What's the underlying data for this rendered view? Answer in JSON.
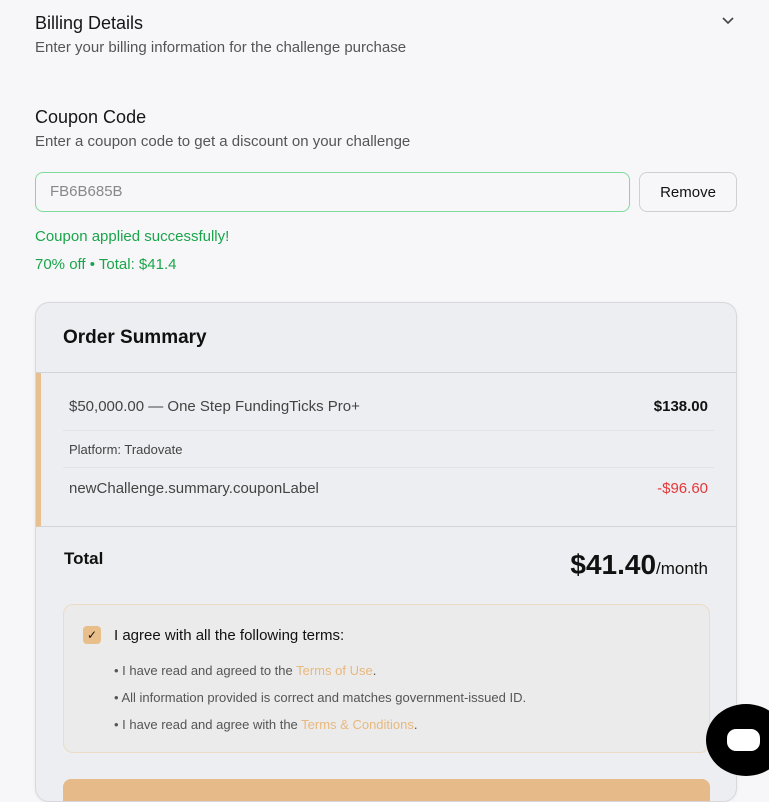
{
  "billing": {
    "title": "Billing Details",
    "subtitle": "Enter your billing information for the challenge purchase",
    "icon": "chevron-down-icon"
  },
  "coupon": {
    "title": "Coupon Code",
    "subtitle": "Enter a coupon code to get a discount on your challenge",
    "value": "FB6B685B",
    "remove_label": "Remove",
    "success": "Coupon applied successfully!",
    "detail": "70% off • Total: $41.4"
  },
  "summary": {
    "title": "Order Summary",
    "item_label": "$50,000.00 — One Step FundingTicks Pro+",
    "item_price": "$138.00",
    "platform": "Platform: Tradovate",
    "coupon_label": "newChallenge.summary.couponLabel",
    "coupon_amount": "-$96.60",
    "total_label": "Total",
    "total_value": "$41.40",
    "total_period": "/month"
  },
  "terms": {
    "checked": true,
    "agree": "I agree with all the following terms:",
    "t1_pre": "• I have read and agreed to the ",
    "t1_link": "Terms of Use",
    "t1_post": ".",
    "t2": "• All information provided is correct and matches government-issued ID.",
    "t3_pre": "• I have read and agree with the ",
    "t3_link": "Terms & Conditions",
    "t3_post": "."
  },
  "colors": {
    "accent": "#e8be8a",
    "success": "#1aa54a",
    "discount": "#e5383b"
  }
}
